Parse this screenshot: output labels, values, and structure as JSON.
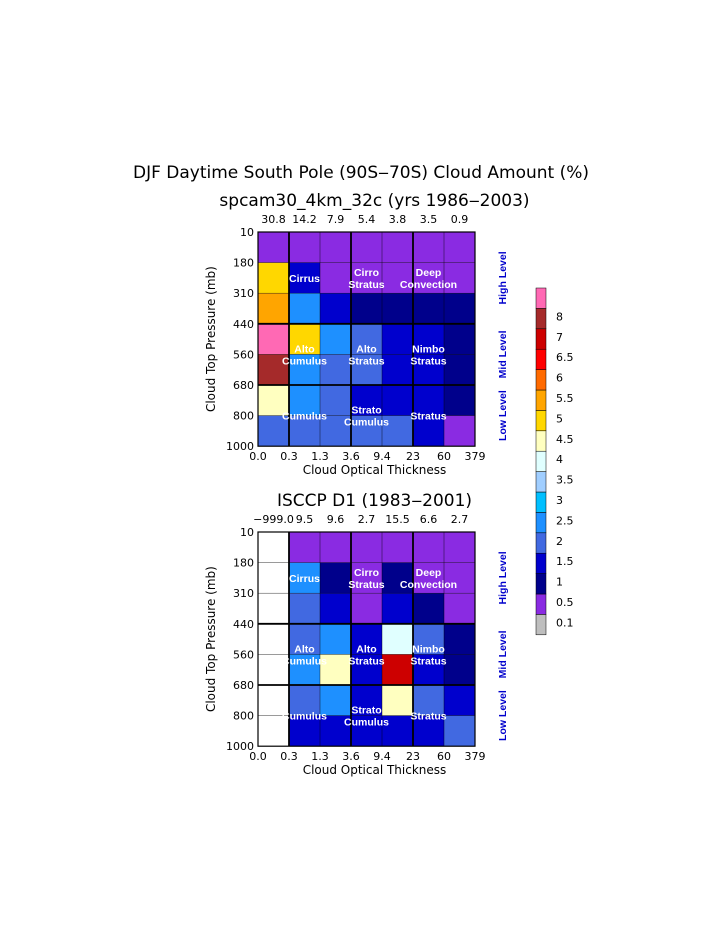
{
  "figure": {
    "title": "DJF Daytime South Pole (90S‒70S) Cloud Amount (%)"
  },
  "level_labels": [
    "High Level",
    "Mid Level",
    "Low Level"
  ],
  "cloud_type_labels": [
    {
      "lines": [
        "Cirrus"
      ],
      "col": 1.5,
      "row": 1.5
    },
    {
      "lines": [
        "Cirro",
        "Stratus"
      ],
      "col": 3.5,
      "row": 1.5
    },
    {
      "lines": [
        "Deep",
        "Convection"
      ],
      "col": 5.5,
      "row": 1.5
    },
    {
      "lines": [
        "Alto",
        "Cumulus"
      ],
      "col": 1.5,
      "row": 4
    },
    {
      "lines": [
        "Alto",
        "Stratus"
      ],
      "col": 3.5,
      "row": 4
    },
    {
      "lines": [
        "Nimbo",
        "Stratus"
      ],
      "col": 5.5,
      "row": 4
    },
    {
      "lines": [
        "Cumulus"
      ],
      "col": 1.5,
      "row": 6
    },
    {
      "lines": [
        "Strato",
        "Cumulus"
      ],
      "col": 3.5,
      "row": 6
    },
    {
      "lines": [
        "Stratus"
      ],
      "col": 5.5,
      "row": 6
    }
  ],
  "colorbar": {
    "labels": [
      "0.1",
      "0.5",
      "1",
      "1.5",
      "2",
      "2.5",
      "3",
      "3.5",
      "4",
      "4.5",
      "5",
      "5.5",
      "6",
      "6.5",
      "7",
      "8"
    ],
    "colors": [
      "#bebebe",
      "#8a2be2",
      "#00008b",
      "#0000cd",
      "#4169e1",
      "#1e90ff",
      "#00bfff",
      "#a0ceff",
      "#e0ffff",
      "#ffffc0",
      "#ffd700",
      "#ffa500",
      "#ff6a00",
      "#ff0000",
      "#cd0000",
      "#a52a2a",
      "#ff69b4"
    ]
  },
  "chart_data": [
    {
      "type": "heatmap",
      "title": "spcam30_4km_32c (yrs 1986‒2003)",
      "xlabel": "Cloud Optical Thickness",
      "ylabel": "Cloud Top Pressure (mb)",
      "x_ticks": [
        "0.0",
        "0.3",
        "1.3",
        "3.6",
        "9.4",
        "23",
        "60",
        "379"
      ],
      "y_ticks": [
        "10",
        "180",
        "310",
        "440",
        "560",
        "680",
        "800",
        "1000"
      ],
      "column_totals": [
        "30.8",
        "14.2",
        "7.9",
        "5.4",
        "3.8",
        "3.5",
        "0.9"
      ],
      "cells": [
        [
          "0.1",
          "0.1",
          "0.1",
          "0.1",
          "0.1",
          "0.1",
          "0.1"
        ],
        [
          "4.5",
          "1",
          "0.1",
          "0.1",
          "0.1",
          "0.1",
          "0.1"
        ],
        [
          "5",
          "2",
          "1",
          "0.5",
          "0.5",
          "0.5",
          "0.5"
        ],
        [
          "8",
          "4.5",
          "2",
          "1.5",
          "1",
          "1",
          "0.5"
        ],
        [
          "7",
          "2",
          "1.5",
          "1.5",
          "1",
          "1",
          "0.5"
        ],
        [
          "4",
          "2",
          "1.5",
          "1",
          "1",
          "1",
          "0.5"
        ],
        [
          "1.5",
          "1.5",
          "1.5",
          "1.5",
          "1.5",
          "1",
          "0.1"
        ]
      ]
    },
    {
      "type": "heatmap",
      "title": "ISCCP D1 (1983‒2001)",
      "xlabel": "Cloud Optical Thickness",
      "ylabel": "Cloud Top Pressure (mb)",
      "x_ticks": [
        "0.0",
        "0.3",
        "1.3",
        "3.6",
        "9.4",
        "23",
        "60",
        "379"
      ],
      "y_ticks": [
        "10",
        "180",
        "310",
        "440",
        "560",
        "680",
        "800",
        "1000"
      ],
      "column_totals": [
        "−999.0",
        "9.5",
        "9.6",
        "2.7",
        "15.5",
        "6.6",
        "2.7"
      ],
      "cells": [
        [
          "missing",
          "0.1",
          "0.1",
          "0.1",
          "0.1",
          "0.1",
          "0.1"
        ],
        [
          "missing",
          "2",
          "0.5",
          "0.1",
          "0.5",
          "0.1",
          "0.1"
        ],
        [
          "missing",
          "1.5",
          "1",
          "0.1",
          "1",
          "0.5",
          "0.1"
        ],
        [
          "missing",
          "1.5",
          "2",
          "1",
          "3.5",
          "1.5",
          "0.5"
        ],
        [
          "missing",
          "2",
          "4",
          "1",
          "6.5",
          "1",
          "0.5"
        ],
        [
          "missing",
          "1.5",
          "2",
          "1",
          "4",
          "1.5",
          "1"
        ],
        [
          "missing",
          "1",
          "1",
          "1",
          "1",
          "1",
          "1.5"
        ]
      ]
    }
  ]
}
